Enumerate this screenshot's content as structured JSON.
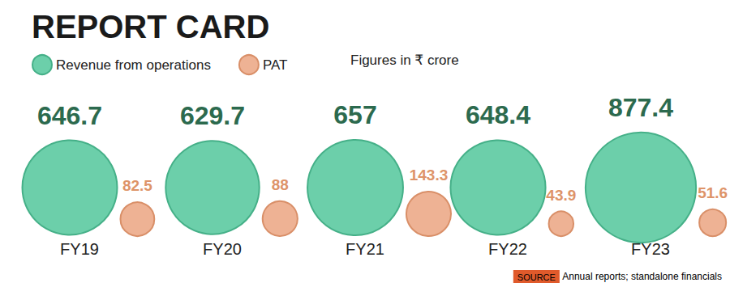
{
  "chart_data": {
    "type": "scatter",
    "title": "REPORT CARD",
    "note": "Figures in ₹ crore",
    "source_label": "SOURCE",
    "source": "Annual reports; standalone financials",
    "categories": [
      "FY19",
      "FY20",
      "FY21",
      "FY22",
      "FY23"
    ],
    "series": [
      {
        "name": "Revenue from operations",
        "color": "#6ccfaa",
        "values": [
          646.7,
          629.7,
          657,
          648.4,
          877.4
        ]
      },
      {
        "name": "PAT",
        "color": "#eeb294",
        "values": [
          82.5,
          88,
          143.3,
          43.9,
          51.6
        ]
      }
    ],
    "data_labels": true,
    "tick_labels": "x",
    "grid": false,
    "legend": "top-left"
  }
}
